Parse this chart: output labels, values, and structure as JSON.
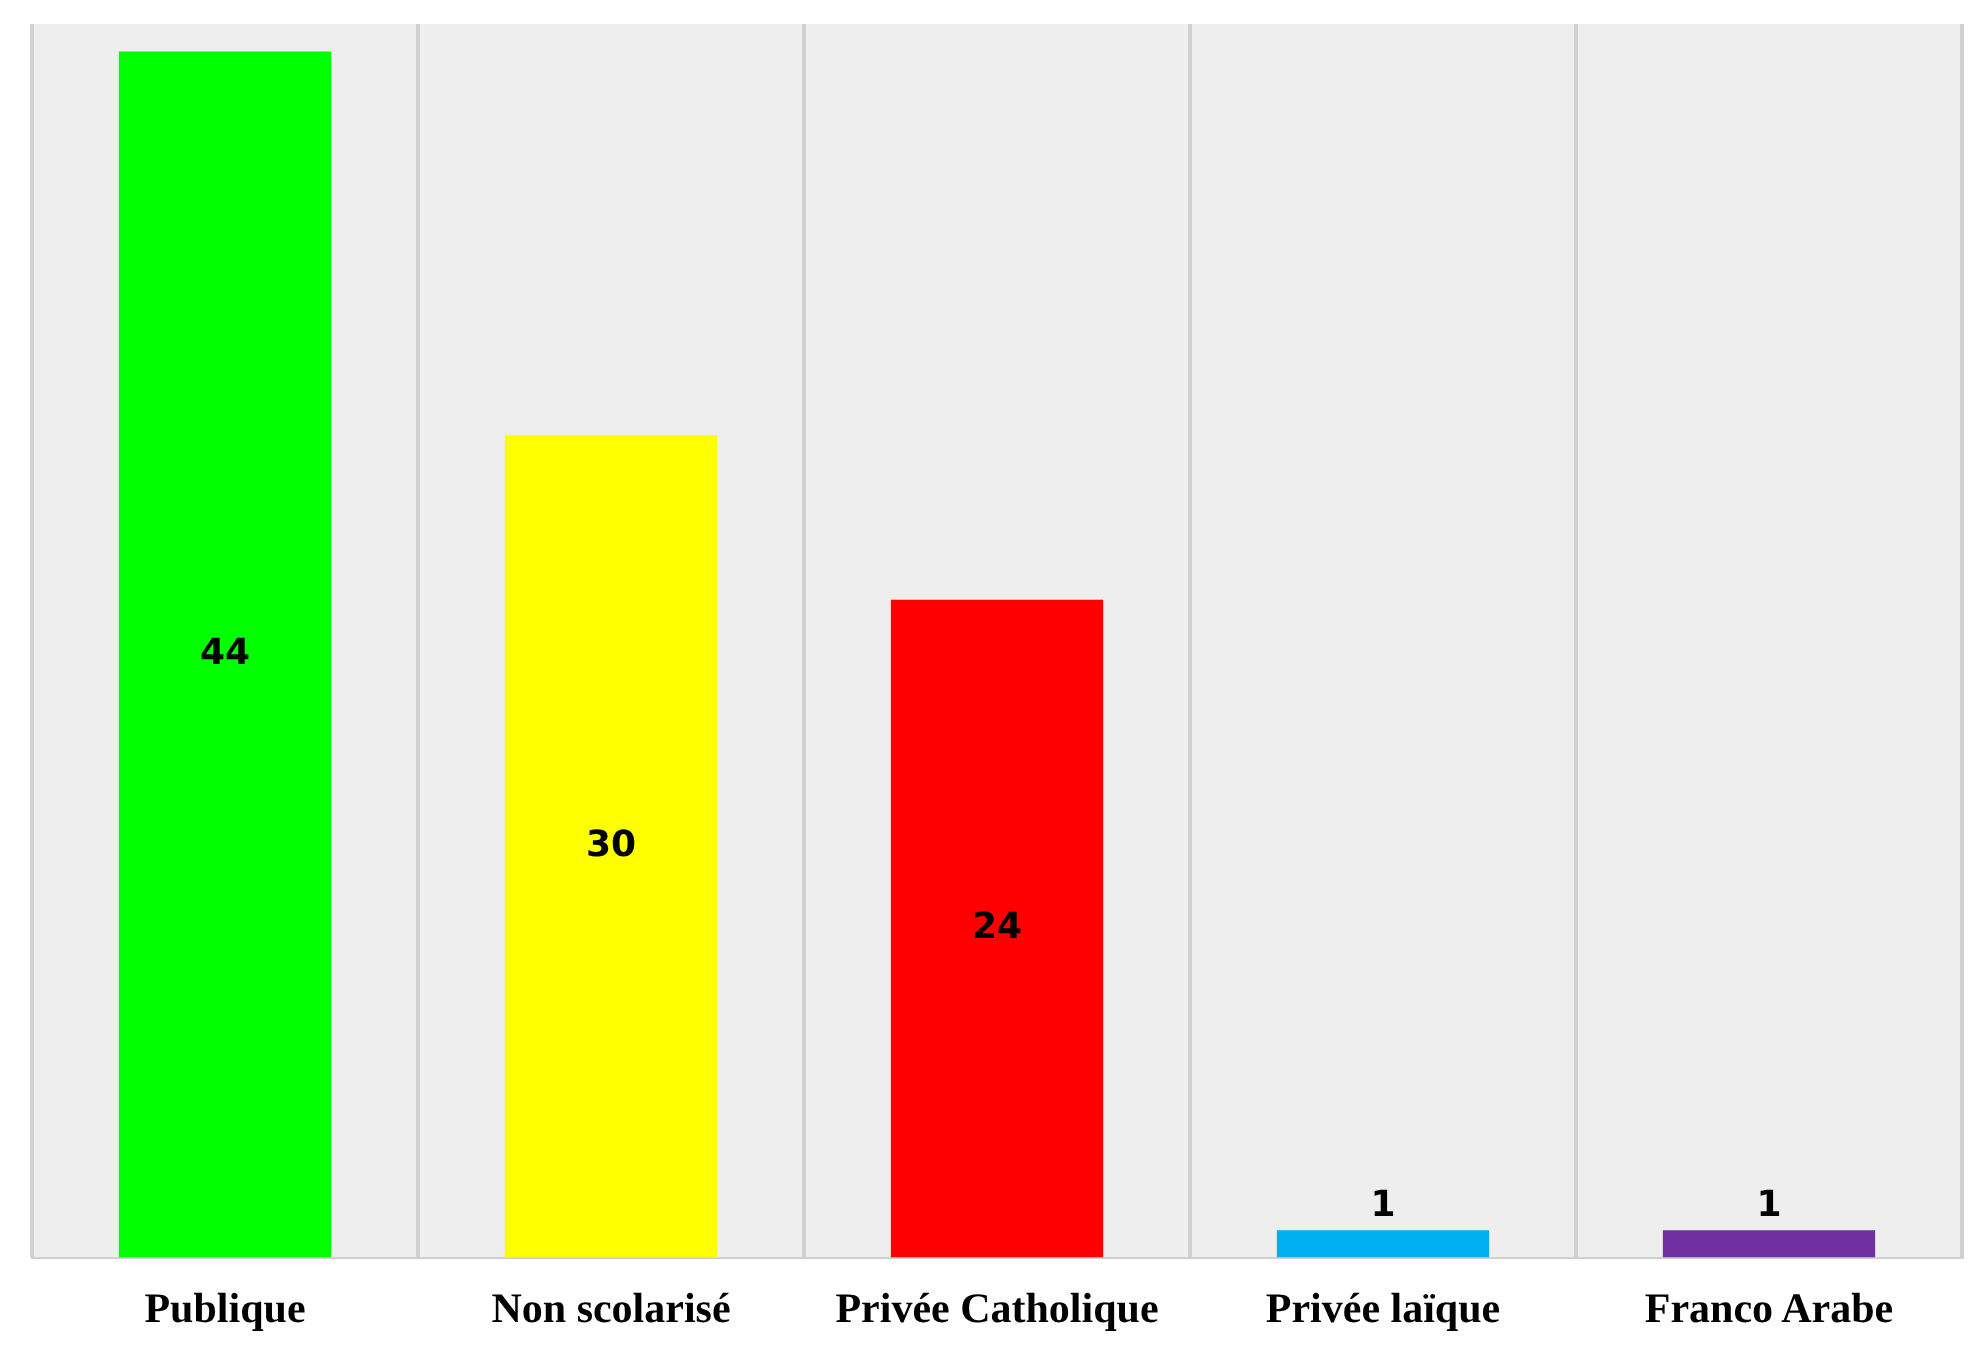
{
  "chart_data": {
    "type": "bar",
    "categories": [
      "Publique",
      "Non scolarisé",
      "Privée Catholique",
      "Privée laïque",
      "Franco Arabe"
    ],
    "values": [
      44,
      30,
      24,
      1,
      1
    ],
    "colors": [
      "#00ff00",
      "#ffff00",
      "#ff0000",
      "#00b0f0",
      "#7030a0"
    ],
    "relative": false,
    "data_labels": true,
    "grid": "x",
    "legend": false
  }
}
